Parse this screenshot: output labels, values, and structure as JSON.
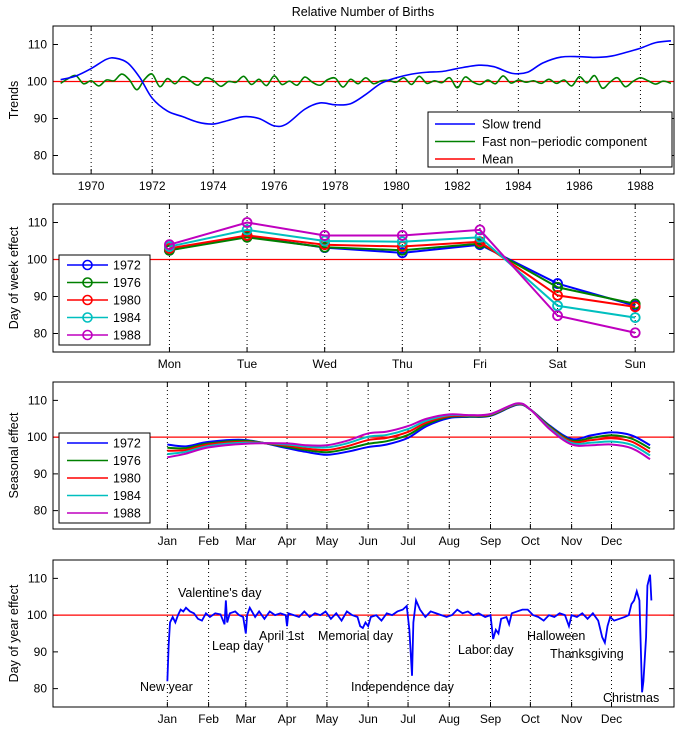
{
  "title": "Relative Number of Births",
  "colors": {
    "blue": "#0000ff",
    "green": "#008000",
    "red": "#ff0000",
    "cyan": "#00bfbf",
    "magenta": "#bf00bf"
  },
  "chart_data": [
    {
      "type": "line",
      "ylabel": "Trends",
      "xlim": [
        1968.75,
        1989.1
      ],
      "ylim": [
        75,
        115
      ],
      "xticks": [
        1970,
        1972,
        1974,
        1976,
        1978,
        1980,
        1982,
        1984,
        1986,
        1988
      ],
      "yticks": [
        80,
        90,
        100,
        110
      ],
      "grid": "vertical dotted",
      "legend_position": "bottom-right",
      "series": [
        {
          "name": "Slow trend",
          "color": "#0000ff",
          "points": [
            [
              1969,
              100.5
            ],
            [
              1969.5,
              101.5
            ],
            [
              1970,
              103.5
            ],
            [
              1970.5,
              106
            ],
            [
              1970.8,
              106.3
            ],
            [
              1971.2,
              105
            ],
            [
              1971.6,
              101
            ],
            [
              1972,
              95.5
            ],
            [
              1972.5,
              92
            ],
            [
              1973,
              90.5
            ],
            [
              1973.5,
              89
            ],
            [
              1974,
              88.5
            ],
            [
              1974.5,
              89.5
            ],
            [
              1975,
              90.5
            ],
            [
              1975.5,
              90
            ],
            [
              1976,
              88
            ],
            [
              1976.4,
              88.5
            ],
            [
              1977,
              92.5
            ],
            [
              1977.5,
              94.2
            ],
            [
              1978,
              93.7
            ],
            [
              1978.5,
              94
            ],
            [
              1979,
              96.5
            ],
            [
              1979.5,
              99.5
            ],
            [
              1980,
              101
            ],
            [
              1980.5,
              102
            ],
            [
              1981,
              102.5
            ],
            [
              1981.5,
              102.7
            ],
            [
              1982,
              103.5
            ],
            [
              1982.7,
              104.4
            ],
            [
              1983.2,
              104
            ],
            [
              1983.8,
              102.2
            ],
            [
              1984.3,
              102.5
            ],
            [
              1984.8,
              105
            ],
            [
              1985.4,
              106.6
            ],
            [
              1986,
              106.7
            ],
            [
              1986.5,
              106.5
            ],
            [
              1987,
              106.8
            ],
            [
              1987.5,
              107.8
            ],
            [
              1988,
              109
            ],
            [
              1988.5,
              110.5
            ],
            [
              1989,
              111
            ]
          ]
        },
        {
          "name": "Fast non−periodic component",
          "color": "#008000",
          "x_range": [
            1969,
            1989
          ],
          "values": [
            99.5,
            100.8,
            101.6,
            99.4,
            100.2,
            98.8,
            100.4,
            100.2,
            102.0,
            100.5,
            97.8,
            100.6,
            102.0,
            98.6,
            100.8,
            99.4,
            101.3,
            100.2,
            99.0,
            101.0,
            100.3,
            98.7,
            100.0,
            99.8,
            101.4,
            99.2,
            100.6,
            98.9,
            101.5,
            99.2,
            100.1,
            99.0,
            101.2,
            99.8,
            99.0,
            100.5,
            100.9,
            98.5,
            100.6,
            99.4,
            101.0,
            99.4,
            100.2,
            100.3,
            99.8,
            101.0,
            99.2,
            101.4,
            99.5,
            100.2,
            99.7,
            101.0,
            98.3,
            101.2,
            99.9,
            99.2,
            100.4,
            99.4,
            101.5,
            99.6,
            100.4,
            99.8,
            100.2,
            99.5,
            100.6,
            99.5,
            100.4,
            98.8,
            101.3,
            99.6,
            101.6,
            98.2,
            99.8,
            101.0,
            98.6,
            100.0,
            101.0,
            100.2,
            99.3,
            100.1,
            99.5
          ]
        },
        {
          "name": "Mean",
          "color": "#ff0000",
          "value": 100
        }
      ]
    },
    {
      "type": "line",
      "ylabel": "Day of week effect",
      "categories": [
        "Mon",
        "Tue",
        "Wed",
        "Thu",
        "Fri",
        "Sat",
        "Sun"
      ],
      "ylim": [
        75,
        115
      ],
      "yticks": [
        80,
        90,
        100,
        110
      ],
      "reference_line": 100,
      "markers": "circle",
      "legend_position": "left",
      "series": [
        {
          "name": "1972",
          "color": "#0000ff",
          "values": [
            102.5,
            106.3,
            103.2,
            101.8,
            104.0,
            93.5,
            87.5
          ]
        },
        {
          "name": "1976",
          "color": "#008000",
          "values": [
            102.5,
            106.0,
            103.3,
            102.5,
            104.3,
            92.5,
            88.0
          ]
        },
        {
          "name": "1980",
          "color": "#ff0000",
          "values": [
            103.0,
            106.5,
            104.0,
            103.5,
            104.8,
            90.3,
            87.2
          ]
        },
        {
          "name": "1984",
          "color": "#00bfbf",
          "values": [
            103.5,
            108.0,
            105.0,
            104.8,
            106.0,
            87.5,
            84.3
          ]
        },
        {
          "name": "1988",
          "color": "#bf00bf",
          "values": [
            104.0,
            110.0,
            106.5,
            106.5,
            108.0,
            84.8,
            80.2
          ]
        }
      ]
    },
    {
      "type": "line",
      "ylabel": "Seasonal effect",
      "xticklabels": [
        "Jan",
        "Feb",
        "Mar",
        "Apr",
        "May",
        "Jun",
        "Jul",
        "Aug",
        "Sep",
        "Oct",
        "Nov",
        "Dec"
      ],
      "xtick_days": [
        1,
        32,
        60,
        91,
        121,
        152,
        182,
        213,
        244,
        274,
        305,
        335
      ],
      "ylim": [
        75,
        115
      ],
      "yticks": [
        80,
        90,
        100,
        110
      ],
      "reference_line": 100,
      "legend_position": "left",
      "x_days": [
        1,
        15,
        32,
        60,
        91,
        105,
        121,
        136,
        152,
        166,
        182,
        196,
        213,
        228,
        244,
        264,
        274,
        289,
        305,
        320,
        335,
        350,
        364
      ],
      "series": [
        {
          "name": "1972",
          "color": "#0000ff",
          "values": [
            98,
            97.5,
            98.7,
            99.2,
            97,
            96,
            95.2,
            96,
            97.3,
            98,
            99.8,
            103,
            105.2,
            105.5,
            105.8,
            108.8,
            107.5,
            103,
            99.5,
            100.5,
            101.3,
            100.5,
            97.8
          ]
        },
        {
          "name": "1976",
          "color": "#008000",
          "values": [
            97.1,
            97.0,
            98.3,
            99.0,
            97.3,
            96.5,
            95.9,
            96.8,
            98.2,
            98.9,
            100.6,
            103.5,
            105.5,
            105.6,
            105.9,
            108.9,
            107.5,
            102.8,
            99.1,
            99.8,
            100.5,
            99.6,
            96.9
          ]
        },
        {
          "name": "1980",
          "color": "#ff0000",
          "values": [
            96.3,
            96.5,
            98.0,
            98.7,
            97.7,
            96.9,
            96.5,
            97.5,
            99.2,
            99.8,
            101.4,
            104.0,
            105.7,
            105.8,
            106.1,
            109.0,
            107.5,
            102.5,
            98.8,
            99.2,
            99.7,
            98.8,
            95.9
          ]
        },
        {
          "name": "1984",
          "color": "#00bfbf",
          "values": [
            95.4,
            96.0,
            97.6,
            98.5,
            98.0,
            97.4,
            97.2,
            98.3,
            100.1,
            100.6,
            102.2,
            104.5,
            106.0,
            105.9,
            106.2,
            109.1,
            107.5,
            102.3,
            98.4,
            98.5,
            98.8,
            97.9,
            95.0
          ]
        },
        {
          "name": "1988",
          "color": "#bf00bf",
          "values": [
            94.5,
            95.5,
            97.2,
            98.2,
            98.3,
            97.8,
            97.8,
            99,
            101,
            101.5,
            103,
            105,
            106.2,
            106,
            106.3,
            109.2,
            107.5,
            102,
            98,
            97.8,
            98,
            97,
            94
          ]
        }
      ]
    },
    {
      "type": "line",
      "ylabel": "Day of year effect",
      "xticklabels": [
        "Jan",
        "Feb",
        "Mar",
        "Apr",
        "May",
        "Jun",
        "Jul",
        "Aug",
        "Sep",
        "Oct",
        "Nov",
        "Dec"
      ],
      "xtick_days": [
        1,
        32,
        60,
        91,
        121,
        152,
        182,
        213,
        244,
        274,
        305,
        335
      ],
      "ylim": [
        75,
        115
      ],
      "yticks": [
        80,
        90,
        100,
        110
      ],
      "reference_line": 100,
      "series": [
        {
          "color": "#0000ff",
          "points": [
            [
              1,
              82
            ],
            [
              2,
              92
            ],
            [
              3,
              98
            ],
            [
              5,
              99.5
            ],
            [
              7,
              98
            ],
            [
              9,
              100
            ],
            [
              11,
              101.5
            ],
            [
              13,
              101
            ],
            [
              15,
              102
            ],
            [
              18,
              101
            ],
            [
              21,
              100.5
            ],
            [
              24,
              99
            ],
            [
              27,
              98.5
            ],
            [
              30,
              100.5
            ],
            [
              33,
              99.5
            ],
            [
              37,
              100.5
            ],
            [
              41,
              100.2
            ],
            [
              44,
              97.5
            ],
            [
              45,
              104
            ],
            [
              46,
              98
            ],
            [
              48,
              100.5
            ],
            [
              52,
              101
            ],
            [
              55,
              100
            ],
            [
              58,
              99.5
            ],
            [
              60,
              95
            ],
            [
              61,
              100
            ],
            [
              63,
              102
            ],
            [
              67,
              99.5
            ],
            [
              70,
              101
            ],
            [
              74,
              99
            ],
            [
              78,
              101
            ],
            [
              82,
              100
            ],
            [
              86,
              100.5
            ],
            [
              90,
              100
            ],
            [
              91,
              97
            ],
            [
              92,
              100.5
            ],
            [
              96,
              100
            ],
            [
              100,
              99.5
            ],
            [
              104,
              101
            ],
            [
              108,
              99.5
            ],
            [
              112,
              100.5
            ],
            [
              116,
              100
            ],
            [
              120,
              101
            ],
            [
              124,
              99
            ],
            [
              128,
              100.5
            ],
            [
              132,
              98.5
            ],
            [
              136,
              101
            ],
            [
              140,
              100
            ],
            [
              144,
              99.5
            ],
            [
              146,
              97
            ],
            [
              148,
              96.5
            ],
            [
              150,
              98
            ],
            [
              152,
              97
            ],
            [
              154,
              99.5
            ],
            [
              158,
              100
            ],
            [
              162,
              98.5
            ],
            [
              166,
              100.5
            ],
            [
              170,
              100
            ],
            [
              174,
              101
            ],
            [
              178,
              101.5
            ],
            [
              181,
              102.5
            ],
            [
              183,
              96
            ],
            [
              185,
              83.5
            ],
            [
              186,
              98
            ],
            [
              188,
              104
            ],
            [
              191,
              101.5
            ],
            [
              195,
              99.5
            ],
            [
              199,
              101
            ],
            [
              203,
              100.5
            ],
            [
              207,
              100
            ],
            [
              211,
              99.5
            ],
            [
              215,
              100
            ],
            [
              219,
              101.5
            ],
            [
              223,
              100.5
            ],
            [
              227,
              101
            ],
            [
              231,
              100
            ],
            [
              235,
              100.5
            ],
            [
              240,
              99.5
            ],
            [
              244,
              100
            ],
            [
              246,
              93.5
            ],
            [
              248,
              96
            ],
            [
              250,
              95
            ],
            [
              252,
              99
            ],
            [
              256,
              99.5
            ],
            [
              258,
              97.5
            ],
            [
              260,
              100.5
            ],
            [
              264,
              101
            ],
            [
              268,
              101.5
            ],
            [
              272,
              101.5
            ],
            [
              276,
              100
            ],
            [
              280,
              99.5
            ],
            [
              284,
              98.5
            ],
            [
              288,
              100
            ],
            [
              292,
              99.5
            ],
            [
              296,
              100.5
            ],
            [
              300,
              100
            ],
            [
              303,
              97
            ],
            [
              305,
              100
            ],
            [
              309,
              99.5
            ],
            [
              313,
              100.5
            ],
            [
              317,
              99
            ],
            [
              321,
              100.5
            ],
            [
              325,
              98.5
            ],
            [
              328,
              94
            ],
            [
              330,
              92.5
            ],
            [
              332,
              97
            ],
            [
              334,
              99.5
            ],
            [
              337,
              98.5
            ],
            [
              341,
              99
            ],
            [
              345,
              99.5
            ],
            [
              348,
              100
            ],
            [
              350,
              103
            ],
            [
              352,
              104
            ],
            [
              354,
              106.5
            ],
            [
              356,
              104
            ],
            [
              358,
              79
            ],
            [
              359,
              82
            ],
            [
              361,
              94
            ],
            [
              362,
              108
            ],
            [
              364,
              111
            ],
            [
              365,
              104
            ]
          ]
        }
      ],
      "annotations": [
        "New year",
        "Valentine's day",
        "Leap day",
        "April 1st",
        "Memorial day",
        "Independence day",
        "Labor day",
        "Halloween",
        "Thanksgiving",
        "Christmas"
      ]
    }
  ]
}
